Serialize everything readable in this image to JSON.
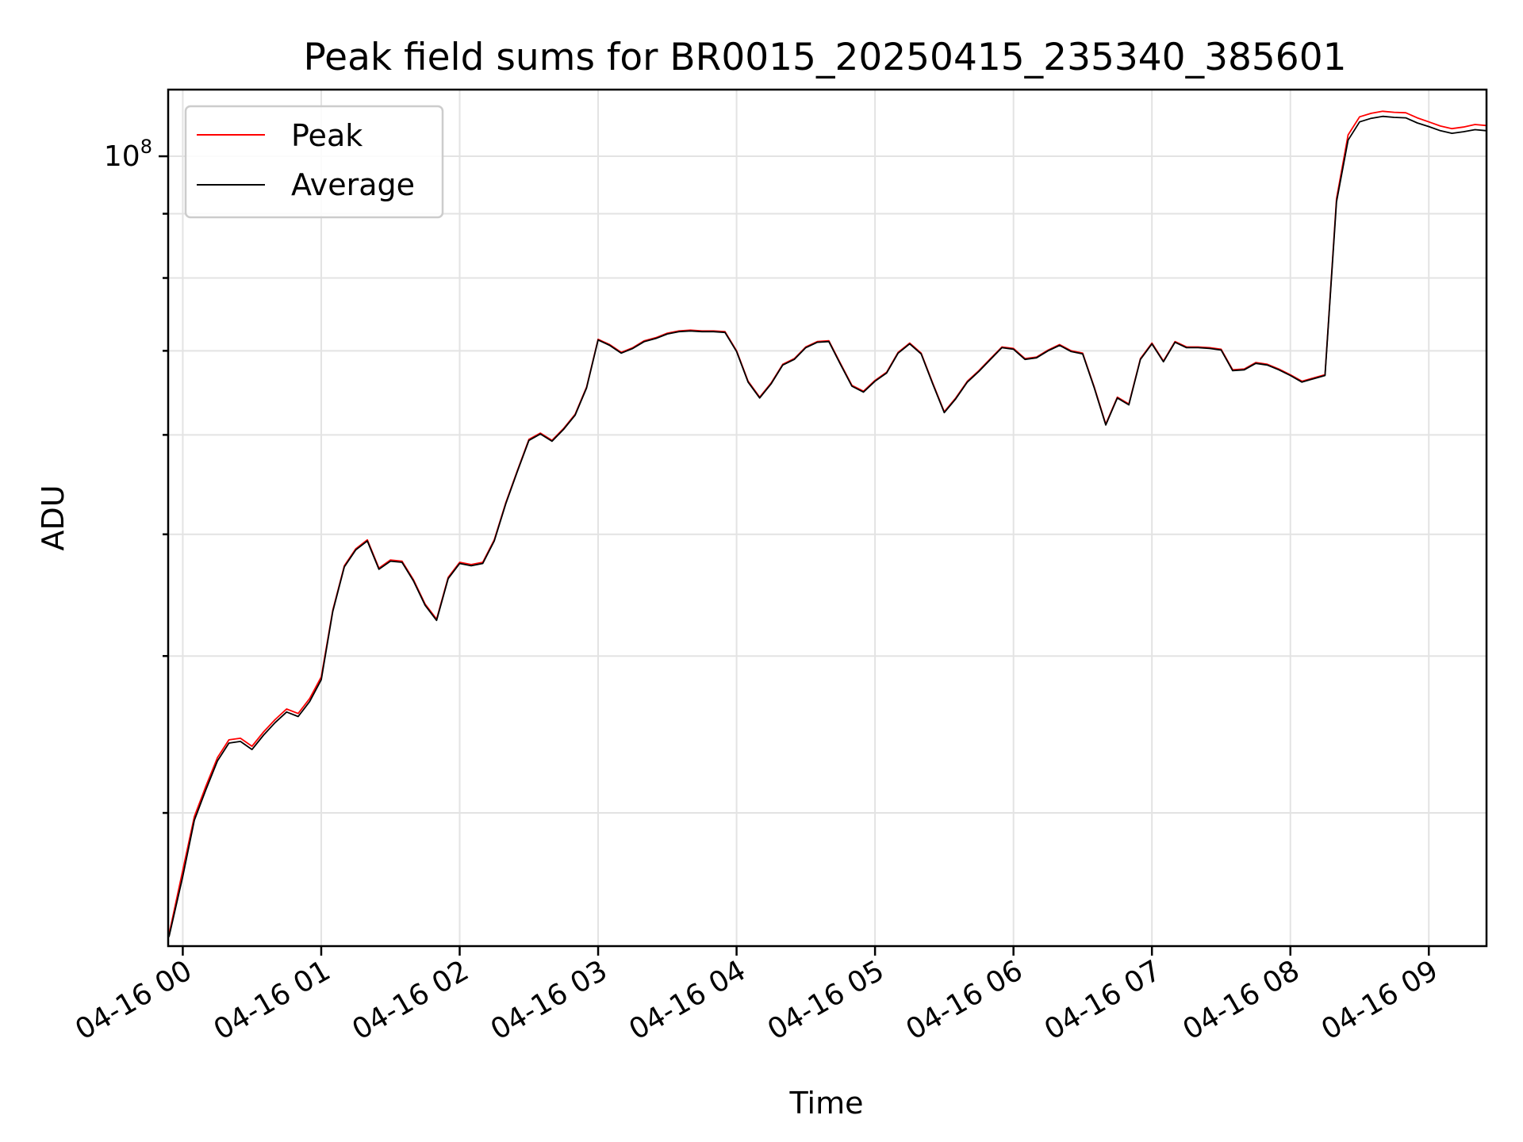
{
  "chart_data": {
    "type": "line",
    "title": "Peak field sums for BR0015_20250415_235340_385601",
    "xlabel": "Time",
    "ylabel": "ADU",
    "yscale": "log",
    "grid": true,
    "legend_position": "upper-left",
    "x_tick_labels": [
      "04-16 00",
      "04-16 01",
      "04-16 02",
      "04-16 03",
      "04-16 04",
      "04-16 05",
      "04-16 06",
      "04-16 07",
      "04-16 08",
      "04-16 09"
    ],
    "x_ticks": [
      "00:00",
      "01:00",
      "02:00",
      "03:00",
      "04:00",
      "05:00",
      "06:00",
      "07:00",
      "08:00",
      "09:00"
    ],
    "xlim": [
      "23:53:40",
      "09:25"
    ],
    "y_tick_label_base": "10",
    "y_tick_label_exponent": "8",
    "y_major_tick": 100000000,
    "y_minor_ticks": [
      30000000,
      40000000,
      50000000,
      60000000,
      70000000,
      80000000,
      90000000
    ],
    "ylim": [
      23500000,
      113000000
    ],
    "legend": [
      {
        "label": "Peak",
        "color": "#ff0000"
      },
      {
        "label": "Average",
        "color": "#000000"
      }
    ],
    "x": [
      "23:54",
      "00:00",
      "00:05",
      "00:10",
      "00:15",
      "00:20",
      "00:25",
      "00:30",
      "00:35",
      "00:40",
      "00:45",
      "00:50",
      "00:55",
      "01:00",
      "01:05",
      "01:10",
      "01:15",
      "01:20",
      "01:25",
      "01:30",
      "01:35",
      "01:40",
      "01:45",
      "01:50",
      "01:55",
      "02:00",
      "02:05",
      "02:10",
      "02:15",
      "02:20",
      "02:25",
      "02:30",
      "02:35",
      "02:40",
      "02:45",
      "02:50",
      "02:55",
      "03:00",
      "03:05",
      "03:10",
      "03:15",
      "03:20",
      "03:25",
      "03:30",
      "03:35",
      "03:40",
      "03:45",
      "03:50",
      "03:55",
      "04:00",
      "04:05",
      "04:10",
      "04:15",
      "04:20",
      "04:25",
      "04:30",
      "04:35",
      "04:40",
      "04:45",
      "04:50",
      "04:55",
      "05:00",
      "05:05",
      "05:10",
      "05:15",
      "05:20",
      "05:25",
      "05:30",
      "05:35",
      "05:40",
      "05:45",
      "05:50",
      "05:55",
      "06:00",
      "06:05",
      "06:10",
      "06:15",
      "06:20",
      "06:25",
      "06:30",
      "06:35",
      "06:40",
      "06:45",
      "06:50",
      "06:55",
      "07:00",
      "07:05",
      "07:10",
      "07:15",
      "07:20",
      "07:25",
      "07:30",
      "07:35",
      "07:40",
      "07:45",
      "07:50",
      "07:55",
      "08:00",
      "08:05",
      "08:10",
      "08:15",
      "08:20",
      "08:25",
      "08:30",
      "08:35",
      "08:40",
      "08:45",
      "08:50",
      "08:55",
      "09:00",
      "09:05",
      "09:10",
      "09:15",
      "09:20",
      "09:25"
    ],
    "series": [
      {
        "name": "Peak",
        "color": "#ff0000",
        "values": [
          24000000,
          27000000,
          29800000,
          31500000,
          33200000,
          34300000,
          34400000,
          33900000,
          34800000,
          35600000,
          36300000,
          36000000,
          37000000,
          38500000,
          43500000,
          47200000,
          48700000,
          49500000,
          47000000,
          47700000,
          47600000,
          46000000,
          44000000,
          42800000,
          46200000,
          47500000,
          47300000,
          47500000,
          49500000,
          53000000,
          56200000,
          59500000,
          60200000,
          59400000,
          60700000,
          62300000,
          65500000,
          71500000,
          70800000,
          69800000,
          70400000,
          71300000,
          71700000,
          72300000,
          72600000,
          72700000,
          72600000,
          72600000,
          72500000,
          70000000,
          66200000,
          64300000,
          66000000,
          68300000,
          69000000,
          70500000,
          71200000,
          71300000,
          68400000,
          65700000,
          65000000,
          66300000,
          67300000,
          69800000,
          71000000,
          69700000,
          66000000,
          62600000,
          64200000,
          66200000,
          67500000,
          69000000,
          70500000,
          70300000,
          69000000,
          69200000,
          70100000,
          70800000,
          70000000,
          69700000,
          65500000,
          61200000,
          64300000,
          63500000,
          69000000,
          71000000,
          68700000,
          71200000,
          70500000,
          70500000,
          70400000,
          70200000,
          67600000,
          67700000,
          68500000,
          68300000,
          67700000,
          67000000,
          66200000,
          66600000,
          67000000,
          92500000,
          104000000,
          107500000,
          108200000,
          108600000,
          108400000,
          108300000,
          107300000,
          106500000,
          105700000,
          105200000,
          105500000,
          106000000,
          105800000
        ]
      },
      {
        "name": "Average",
        "color": "#000000",
        "values": [
          23900000,
          26700000,
          29600000,
          31300000,
          33000000,
          34100000,
          34200000,
          33700000,
          34600000,
          35400000,
          36100000,
          35800000,
          36800000,
          38300000,
          43400000,
          47100000,
          48600000,
          49400000,
          46900000,
          47600000,
          47500000,
          45900000,
          43900000,
          42700000,
          46100000,
          47400000,
          47200000,
          47400000,
          49400000,
          52900000,
          56100000,
          59400000,
          60100000,
          59300000,
          60600000,
          62200000,
          65400000,
          71400000,
          70700000,
          69700000,
          70300000,
          71200000,
          71600000,
          72200000,
          72500000,
          72600000,
          72500000,
          72500000,
          72400000,
          69900000,
          66100000,
          64200000,
          65900000,
          68200000,
          68900000,
          70400000,
          71100000,
          71200000,
          68300000,
          65600000,
          64900000,
          66200000,
          67200000,
          69700000,
          70900000,
          69600000,
          65900000,
          62500000,
          64100000,
          66100000,
          67400000,
          68900000,
          70400000,
          70200000,
          68900000,
          69100000,
          70000000,
          70700000,
          69900000,
          69600000,
          65400000,
          61100000,
          64200000,
          63400000,
          68900000,
          70900000,
          68600000,
          71100000,
          70400000,
          70400000,
          70300000,
          70100000,
          67500000,
          67600000,
          68400000,
          68200000,
          67600000,
          66900000,
          66100000,
          66500000,
          66900000,
          92000000,
          103000000,
          106500000,
          107200000,
          107600000,
          107400000,
          107300000,
          106300000,
          105600000,
          104800000,
          104300000,
          104600000,
          105000000,
          104800000
        ]
      }
    ]
  }
}
